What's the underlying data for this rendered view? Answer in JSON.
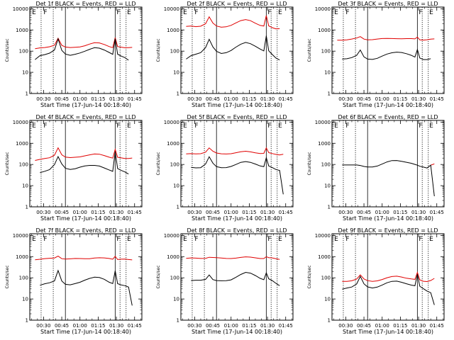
{
  "chart_data": {
    "type": "line",
    "layout": "3x3 grid",
    "common": {
      "xlabel": "Start Time (17-Jun-14 00:18:40)",
      "ylabel": "Counts/sec",
      "x_ticks": [
        "00:30",
        "00:45",
        "01:00",
        "01:15",
        "01:30",
        "01:45"
      ],
      "x_tick_minutes": [
        30,
        45,
        60,
        75,
        90,
        105
      ],
      "xlim_minutes": [
        18.67,
        111
      ],
      "y_scale": "log",
      "ylim": [
        1,
        12000
      ],
      "y_ticks": [
        "1",
        "10",
        "100",
        "1000",
        "10000"
      ],
      "series_names": [
        "Events",
        "LLD"
      ],
      "series_colors": {
        "events": "#000000",
        "lld": "#e00000"
      },
      "dotted_lines_minutes": [
        28,
        38,
        93,
        98
      ],
      "solid_lines_minutes": [
        48,
        89
      ],
      "markers": [
        {
          "text": "E",
          "minute": 20.5
        },
        {
          "text": "F",
          "minute": 30
        },
        {
          "text": "F",
          "minute": 90.2
        },
        {
          "text": "E",
          "minute": 98.8
        }
      ],
      "x_sample_minutes": [
        23,
        27,
        31,
        35,
        39,
        42,
        45,
        48,
        52,
        56,
        60,
        64,
        68,
        72,
        76,
        80,
        84,
        87,
        89,
        91,
        94,
        97,
        100,
        103
      ]
    },
    "panels": [
      {
        "title": "Det 1f BLACK = Events, RED = LLD",
        "events": [
          40,
          58,
          65,
          80,
          120,
          400,
          110,
          70,
          60,
          70,
          85,
          105,
          125,
          140,
          130,
          110,
          90,
          75,
          400,
          70,
          55,
          48,
          38,
          null
        ],
        "lld": [
          130,
          135,
          140,
          160,
          200,
          430,
          190,
          150,
          140,
          150,
          165,
          190,
          220,
          240,
          230,
          200,
          170,
          155,
          450,
          160,
          145,
          140,
          150,
          160
        ]
      },
      {
        "title": "Det 2f BLACK = Events, RED = LLD",
        "events": [
          40,
          60,
          75,
          90,
          150,
          350,
          150,
          95,
          80,
          90,
          110,
          150,
          200,
          250,
          230,
          180,
          130,
          100,
          500,
          100,
          70,
          50,
          40,
          null
        ],
        "lld": [
          1400,
          1500,
          1500,
          1600,
          2000,
          4000,
          2000,
          1500,
          1400,
          1500,
          1700,
          2100,
          2600,
          3000,
          2800,
          2200,
          1700,
          1500,
          4500,
          1500,
          1300,
          1200,
          1200,
          null
        ]
      },
      {
        "title": "Det 3f BLACK = Events, RED = LLD",
        "events": [
          null,
          45,
          45,
          48,
          60,
          110,
          55,
          45,
          42,
          45,
          55,
          70,
          85,
          95,
          90,
          75,
          60,
          50,
          120,
          50,
          42,
          40,
          42,
          null
        ],
        "lld": [
          340,
          350,
          350,
          360,
          390,
          470,
          380,
          360,
          360,
          365,
          370,
          385,
          400,
          410,
          400,
          385,
          370,
          360,
          460,
          360,
          350,
          345,
          350,
          360
        ]
      },
      {
        "title": "Det 4f BLACK = Events, RED = LLD",
        "events": [
          null,
          40,
          45,
          55,
          100,
          250,
          110,
          65,
          55,
          60,
          75,
          90,
          95,
          90,
          80,
          65,
          55,
          50,
          420,
          65,
          50,
          42,
          35,
          null
        ],
        "lld": [
          160,
          170,
          180,
          200,
          280,
          650,
          300,
          220,
          200,
          210,
          230,
          270,
          300,
          310,
          290,
          250,
          220,
          210,
          550,
          220,
          195,
          180,
          190,
          210
        ]
      },
      {
        "title": "Det 5f BLACK = Events, RED = LLD",
        "events": [
          null,
          70,
          70,
          75,
          110,
          230,
          110,
          75,
          70,
          75,
          85,
          100,
          120,
          130,
          125,
          110,
          90,
          80,
          200,
          80,
          70,
          60,
          55,
          4
        ],
        "lld": [
          300,
          310,
          320,
          340,
          400,
          600,
          400,
          330,
          320,
          330,
          340,
          360,
          380,
          400,
          390,
          370,
          350,
          340,
          580,
          340,
          320,
          310,
          300,
          310
        ]
      },
      {
        "title": "Det 6f BLACK = Events, RED = LLD",
        "events": [
          null,
          100,
          100,
          95,
          90,
          85,
          80,
          80,
          80,
          85,
          100,
          125,
          150,
          160,
          150,
          130,
          110,
          95,
          90,
          85,
          80,
          70,
          90,
          3
        ],
        "lld": [
          null,
          null,
          null,
          null,
          null,
          null,
          null,
          null,
          null,
          null,
          null,
          null,
          null,
          null,
          null,
          null,
          null,
          null,
          null,
          null,
          null,
          null,
          90,
          100
        ]
      },
      {
        "title": "Det 7f BLACK = Events, RED = LLD",
        "events": [
          null,
          45,
          50,
          55,
          70,
          230,
          75,
          50,
          45,
          50,
          60,
          80,
          100,
          110,
          100,
          80,
          60,
          55,
          230,
          55,
          45,
          40,
          35,
          5
        ],
        "lld": [
          750,
          760,
          770,
          790,
          850,
          1100,
          850,
          780,
          760,
          770,
          790,
          820,
          850,
          880,
          860,
          820,
          790,
          770,
          1100,
          760,
          740,
          720,
          700,
          710
        ]
      },
      {
        "title": "Det 8f BLACK = Events, RED = LLD",
        "events": [
          null,
          70,
          75,
          80,
          90,
          140,
          80,
          70,
          70,
          75,
          85,
          110,
          140,
          170,
          160,
          130,
          100,
          85,
          170,
          85,
          70,
          55,
          45,
          null
        ],
        "lld": [
          800,
          820,
          830,
          850,
          880,
          960,
          880,
          840,
          830,
          840,
          860,
          880,
          900,
          920,
          910,
          890,
          860,
          850,
          980,
          850,
          830,
          800,
          780,
          null
        ]
      },
      {
        "title": "Det 9f BLACK = Events, RED = LLD",
        "events": [
          null,
          30,
          35,
          38,
          50,
          110,
          50,
          38,
          35,
          38,
          45,
          55,
          65,
          70,
          65,
          55,
          45,
          40,
          140,
          40,
          32,
          25,
          20,
          5
        ],
        "lld": [
          null,
          70,
          72,
          75,
          85,
          130,
          85,
          75,
          72,
          75,
          82,
          95,
          110,
          120,
          115,
          100,
          88,
          80,
          170,
          80,
          72,
          70,
          75,
          90
        ]
      }
    ]
  }
}
